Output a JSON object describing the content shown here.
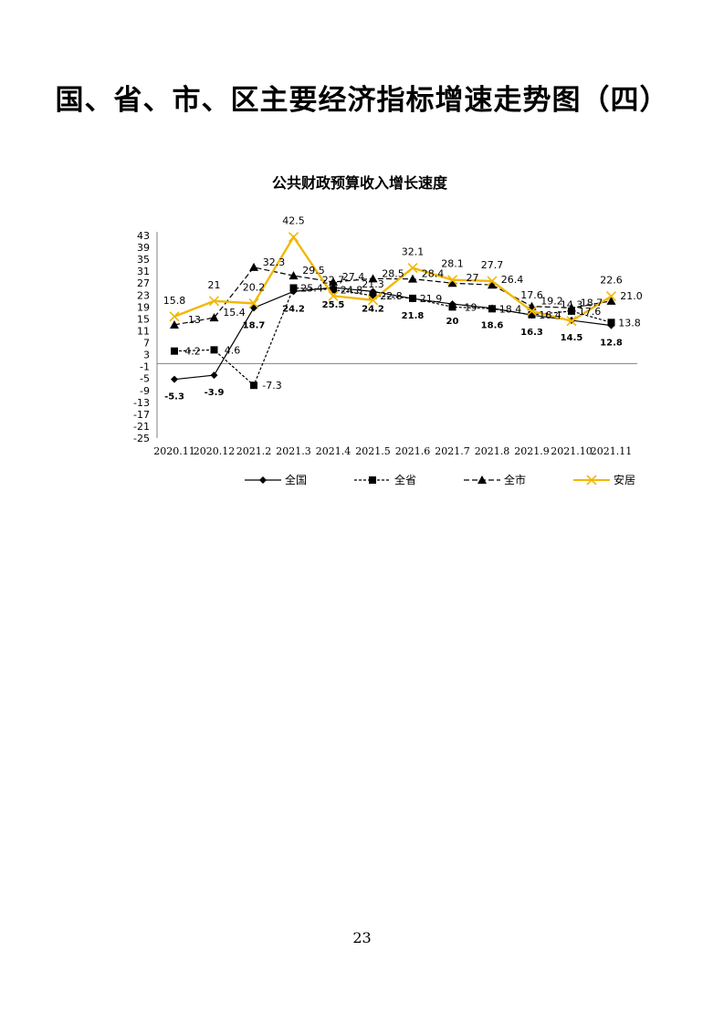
{
  "page": {
    "title": "国、省、市、区主要经济指标增速走势图（四）",
    "page_number": "23"
  },
  "chart_data": {
    "type": "line",
    "title": "公共财政预算收入增长速度",
    "xlabel": "",
    "ylabel": "",
    "ylim": [
      -25,
      43
    ],
    "yticks": [
      "43",
      "39",
      "35",
      "31",
      "27",
      "23",
      "19",
      "15",
      "11",
      "7",
      "3",
      "-1",
      "-5",
      "-9",
      "-13",
      "-17",
      "-21",
      "-25"
    ],
    "categories": [
      "2020.11",
      "2020.12",
      "2021.2",
      "2021.3",
      "2021.4",
      "2021.5",
      "2021.6",
      "2021.7",
      "2021.8",
      "2021.9",
      "2021.10",
      "2021.11"
    ],
    "legend_position": "bottom",
    "grid": false,
    "series": [
      {
        "name": "全国",
        "values": [
          -5.3,
          -3.9,
          18.7,
          24.2,
          25.5,
          24.2,
          21.8,
          20,
          18.6,
          16.3,
          14.5,
          12.8
        ],
        "labels": [
          "-5.3",
          "-3.9",
          "18.7",
          "24.2",
          "25.5",
          "24.2",
          "21.8",
          "20",
          "18.6",
          "16.3",
          "14.5",
          "12.8"
        ],
        "color": "#000000",
        "dash": "",
        "marker": "diamond"
      },
      {
        "name": "全省",
        "values": [
          4.2,
          4.6,
          -7.3,
          25.4,
          24.8,
          22.8,
          21.9,
          19,
          18.4,
          16.4,
          17.6,
          13.8
        ],
        "labels": [
          "4.2",
          "4.6",
          "-7.3",
          "25.4",
          "24.8",
          "22.8",
          "21.9",
          "19",
          "18.4",
          "16.4",
          "17.6",
          "13.8"
        ],
        "color": "#000000",
        "dash": "3,2",
        "marker": "square"
      },
      {
        "name": "全市",
        "values": [
          13,
          15.4,
          32.3,
          29.5,
          27.4,
          28.5,
          28.4,
          27,
          26.4,
          19.2,
          18.7,
          21.0
        ],
        "labels": [
          "13",
          "15.4",
          "32.3",
          "29.5",
          "27.4",
          "28.5",
          "28.4",
          "27",
          "26.4",
          "19.2",
          "18.7",
          "21.0"
        ],
        "color": "#000000",
        "dash": "6,3",
        "marker": "triangle"
      },
      {
        "name": "安居",
        "values": [
          15.8,
          21,
          20.2,
          42.5,
          22.7,
          21.3,
          32.1,
          28.1,
          27.7,
          17.6,
          14.3,
          22.6
        ],
        "labels": [
          "15.8",
          "21",
          "20.2",
          "42.5",
          "22.7",
          "21.3",
          "32.1",
          "28.1",
          "27.7",
          "17.6",
          "14.3",
          "22.6"
        ],
        "color": "#F2B705",
        "dash": "",
        "marker": "x"
      }
    ]
  }
}
